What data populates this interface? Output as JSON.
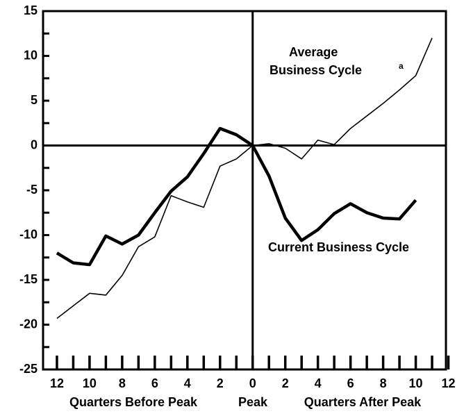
{
  "chart_data": {
    "type": "line",
    "x": [
      -12,
      -11,
      -10,
      -9,
      -8,
      -7,
      -6,
      -5,
      -4,
      -3,
      -2,
      -1,
      0,
      1,
      2,
      3,
      4,
      5,
      6,
      7,
      8,
      9,
      10,
      11
    ],
    "series": [
      {
        "color": "#000000",
        "width": 1.6,
        "values": [
          -19.3,
          -17.9,
          -16.5,
          -16.7,
          -14.5,
          -11.3,
          -10.2,
          -5.6,
          -6.3,
          -6.9,
          -2.3,
          -1.5,
          0,
          0.2,
          -0.3,
          -1.5,
          0.6,
          0.1,
          1.9,
          3.3,
          4.7,
          6.2,
          7.8,
          12.0
        ]
      },
      {
        "name": "Current Business Cycle",
        "color": "#000000",
        "width": 4.5,
        "values": [
          -12.0,
          -13.1,
          -13.3,
          -10.1,
          -11.0,
          -10.0,
          -7.5,
          -5.1,
          -3.5,
          -0.9,
          1.9,
          1.2,
          0,
          -3.4,
          -8.1,
          -10.6,
          -9.4,
          -7.6,
          -6.5,
          -7.5,
          -8.1,
          -8.2,
          -6.1,
          null
        ]
      }
    ],
    "annotations": [
      "Average",
      "Business Cycle",
      "a"
    ],
    "x_labels": [
      "Quarters Before Peak",
      "Peak",
      "Quarters After Peak"
    ],
    "xlim": [
      -12.85,
      11.85
    ],
    "ylim": [
      -25,
      15
    ],
    "yticks": [
      -25,
      -20,
      -15,
      -10,
      -5,
      0,
      5,
      10,
      15
    ],
    "yminorticks": [
      -22.5,
      -17.5,
      -12.5,
      -7.5,
      -2.5,
      2.5,
      7.5,
      12.5
    ],
    "xticks": [
      {
        "value": -12,
        "label": "12"
      },
      {
        "value": -10,
        "label": "10"
      },
      {
        "value": -8,
        "label": "8"
      },
      {
        "value": -6,
        "label": "6"
      },
      {
        "value": -4,
        "label": "4"
      },
      {
        "value": -2,
        "label": "2"
      },
      0,
      2,
      4,
      6,
      8,
      10,
      12
    ],
    "xminorticks": [
      -11,
      -9,
      -7,
      -5,
      -3,
      -1,
      1,
      3,
      5,
      7,
      9,
      11
    ]
  }
}
